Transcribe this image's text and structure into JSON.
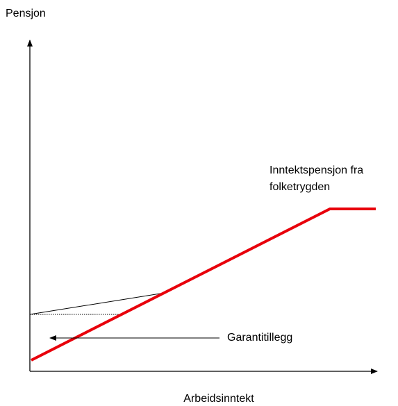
{
  "axes": {
    "y_label": "Pensjon",
    "x_label": "Arbeidsinntekt"
  },
  "curve": {
    "label_lines": [
      "Inntektspensjon fra",
      "folketrygden"
    ]
  },
  "annotation": {
    "label": "Garantitillegg"
  }
}
